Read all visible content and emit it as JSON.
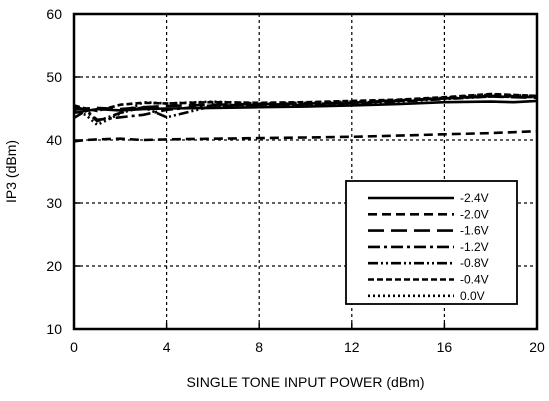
{
  "chart_data": {
    "type": "line",
    "title": "",
    "xlabel": "SINGLE TONE INPUT POWER (dBm)",
    "ylabel": "IP3 (dBm)",
    "xlim": [
      0,
      20
    ],
    "ylim": [
      10,
      60
    ],
    "xticks": [
      0,
      4,
      8,
      12,
      16,
      20
    ],
    "yticks": [
      10,
      20,
      30,
      40,
      50,
      60
    ],
    "grid": true,
    "legend_position": "bottom-right",
    "series": [
      {
        "name": "-2.4V",
        "dash": "solid",
        "x": [
          0,
          0.5,
          1,
          2,
          3,
          4,
          6,
          8,
          10,
          12,
          14,
          16,
          18,
          19,
          20
        ],
        "y": [
          44.3,
          44.6,
          44.9,
          44.7,
          44.9,
          45.0,
          45.1,
          45.2,
          45.3,
          45.5,
          45.7,
          46.0,
          46.1,
          46.0,
          46.2
        ]
      },
      {
        "name": "-2.0V",
        "dash": "long-dash",
        "x": [
          0,
          0.5,
          1,
          2,
          3,
          4,
          6,
          8,
          10,
          12,
          14,
          16,
          18,
          20
        ],
        "y": [
          39.8,
          40.0,
          40.1,
          40.2,
          40.0,
          40.1,
          40.2,
          40.3,
          40.4,
          40.5,
          40.7,
          40.9,
          41.1,
          41.4
        ]
      },
      {
        "name": "-1.6V",
        "dash": "very-long-dash",
        "x": [
          0,
          0.5,
          1,
          2,
          3,
          4,
          6,
          8,
          10,
          12,
          14,
          16,
          18,
          19,
          20
        ],
        "y": [
          44.8,
          45.0,
          45.1,
          44.9,
          45.2,
          45.4,
          45.6,
          45.7,
          45.8,
          45.9,
          46.3,
          46.6,
          46.9,
          46.8,
          46.7
        ]
      },
      {
        "name": "-1.2V",
        "dash": "dash-dot",
        "x": [
          0,
          0.5,
          1,
          2,
          3,
          4,
          6,
          8,
          10,
          12,
          14,
          16,
          18,
          20
        ],
        "y": [
          45.3,
          44.8,
          43.2,
          43.6,
          44.0,
          44.8,
          45.5,
          45.6,
          45.7,
          45.9,
          46.2,
          46.6,
          47.0,
          46.9
        ]
      },
      {
        "name": "-0.8V",
        "dash": "dash-dot-dot",
        "x": [
          0,
          0.5,
          1,
          2,
          3,
          4,
          6,
          8,
          10,
          12,
          14,
          16,
          18,
          20
        ],
        "y": [
          43.5,
          44.6,
          43.0,
          44.3,
          45.2,
          43.6,
          45.4,
          45.6,
          45.5,
          45.8,
          46.1,
          46.5,
          46.9,
          46.8
        ]
      },
      {
        "name": "-0.4V",
        "dash": "medium-dash",
        "x": [
          0,
          0.5,
          1,
          2,
          3,
          4,
          6,
          8,
          10,
          12,
          14,
          16,
          18,
          20
        ],
        "y": [
          45.5,
          45.0,
          44.6,
          45.6,
          45.9,
          45.8,
          46.0,
          45.9,
          46.0,
          46.2,
          46.4,
          46.8,
          47.3,
          47.0
        ]
      },
      {
        "name": "0.0V",
        "dash": "dotted",
        "x": [
          0,
          0.5,
          1,
          2,
          3,
          4,
          6,
          8,
          10,
          12,
          14,
          16,
          18,
          20
        ],
        "y": [
          44.5,
          44.0,
          42.4,
          44.2,
          46.0,
          45.8,
          46.1,
          45.8,
          45.9,
          46.1,
          46.3,
          46.7,
          47.2,
          47.0
        ]
      }
    ]
  }
}
